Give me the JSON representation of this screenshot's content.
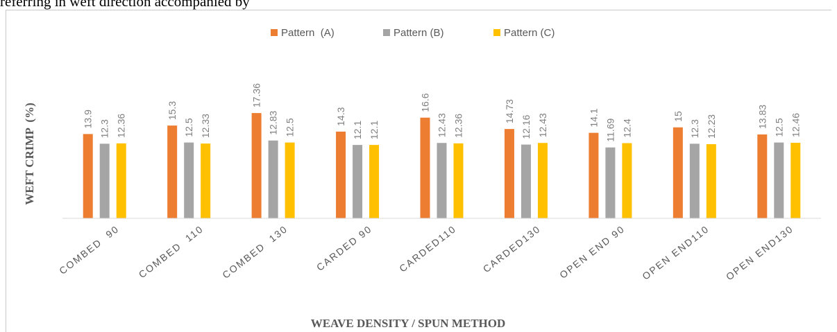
{
  "page": {
    "top_text": "referring  in  weft  direction  accompanied  by"
  },
  "chart_data": {
    "type": "bar",
    "categories": [
      "COMBED  90",
      "COMBED  110",
      "COMBED  130",
      "CARDED 90",
      "CARDED110",
      "CARDED130",
      "OPEN END 90",
      "OPEN END110",
      "OPEN END130"
    ],
    "series": [
      {
        "name": "Pattern  (A)",
        "color": "#ed7d31",
        "values": [
          13.9,
          15.3,
          17.36,
          14.3,
          16.6,
          14.73,
          14.1,
          15,
          13.83
        ],
        "labels": [
          "13.9",
          "15.3",
          "17.36",
          "14.3",
          "16.6",
          "14.73",
          "14.1",
          "15",
          "13.83"
        ]
      },
      {
        "name": "Pattern (B)",
        "color": "#a5a5a5",
        "values": [
          12.3,
          12.5,
          12.83,
          12.1,
          12.43,
          12.16,
          11.69,
          12.3,
          12.5
        ],
        "labels": [
          "12.3",
          "12.5",
          "12.83",
          "12.1",
          "12.43",
          "12.16",
          "11.69",
          "12.3",
          "12.5"
        ]
      },
      {
        "name": "Pattern (C)",
        "color": "#ffc000",
        "values": [
          12.36,
          12.33,
          12.5,
          12.1,
          12.36,
          12.43,
          12.4,
          12.23,
          12.46
        ],
        "labels": [
          "12.36",
          "12.33",
          "12.5",
          "12.1",
          "12.36",
          "12.43",
          "12.4",
          "12.23",
          "12.46"
        ]
      }
    ],
    "xlabel": "WEAVE DENSITY / SPUN METHOD",
    "ylabel": "WEFT CRIMP  (%)",
    "ylim": [
      0,
      20
    ],
    "grid": false,
    "legend_position": "top-center"
  }
}
